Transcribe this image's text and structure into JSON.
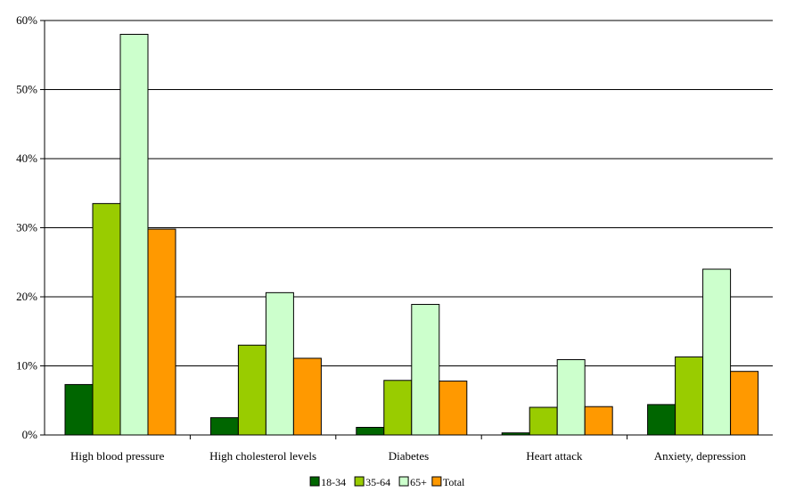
{
  "chart_data": {
    "type": "bar",
    "categories": [
      "High blood pressure",
      "High cholesterol levels",
      "Diabetes",
      "Heart attack",
      "Anxiety, depression"
    ],
    "series": [
      {
        "name": "18-34",
        "color": "#006600",
        "values": [
          7.3,
          2.5,
          1.1,
          0.3,
          4.4
        ]
      },
      {
        "name": "35-64",
        "color": "#99cc00",
        "values": [
          33.5,
          13.0,
          7.9,
          4.0,
          11.3
        ]
      },
      {
        "name": "65+",
        "color": "#ccffcc",
        "values": [
          58.0,
          20.6,
          18.9,
          10.9,
          24.0
        ]
      },
      {
        "name": "Total",
        "color": "#ff9900",
        "values": [
          29.8,
          11.1,
          7.8,
          4.1,
          9.2
        ]
      }
    ],
    "y_ticks": [
      "0%",
      "10%",
      "20%",
      "30%",
      "40%",
      "50%",
      "60%"
    ],
    "ylim": [
      0,
      60
    ],
    "grid": true,
    "legend_position": "bottom"
  }
}
